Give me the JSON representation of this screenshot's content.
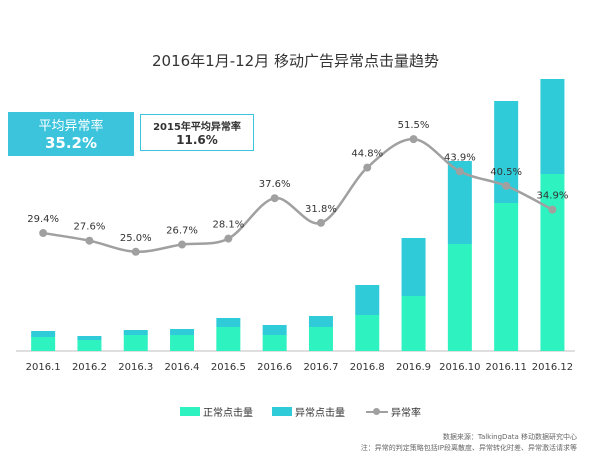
{
  "title": "2016年1月-12月 移动广告异常点击量趋势",
  "avg_2016": {
    "label": "平均异常率",
    "value": "35.2%"
  },
  "avg_2015": {
    "label": "2015年平均异常率",
    "value": "11.6%"
  },
  "chart_data": {
    "type": "bar",
    "stacked": true,
    "categories": [
      "2016.1",
      "2016.2",
      "2016.3",
      "2016.4",
      "2016.5",
      "2016.6",
      "2016.7",
      "2016.8",
      "2016.9",
      "2016.10",
      "2016.11",
      "2016.12"
    ],
    "series": [
      {
        "name": "正常点击量",
        "color": "#2ef2bf",
        "values": [
          14,
          11,
          16,
          16,
          24,
          16,
          24,
          36,
          55,
          107,
          148,
          177
        ]
      },
      {
        "name": "异常点击量",
        "color": "#2fcbd9",
        "values": [
          6,
          4,
          5,
          6,
          9,
          10,
          11,
          30,
          58,
          83,
          102,
          95
        ]
      },
      {
        "name": "异常率",
        "type": "line",
        "color": "#a0a0a0",
        "values": [
          29.4,
          27.6,
          25.0,
          26.7,
          28.1,
          37.6,
          31.8,
          44.8,
          51.5,
          43.9,
          40.5,
          34.9
        ]
      }
    ],
    "rate_labels": [
      "29.4%",
      "27.6%",
      "25.0%",
      "26.7%",
      "28.1%",
      "37.6%",
      "31.8%",
      "44.8%",
      "51.5%",
      "43.9%",
      "40.5%",
      "34.9%"
    ],
    "legend": "bottom"
  },
  "notes": {
    "source": "数据来源：TalkingData 移动数据研究中心",
    "remark": "注：异常的判定策略包括IP段离散度、异常转化时差、异常激活请求等"
  }
}
